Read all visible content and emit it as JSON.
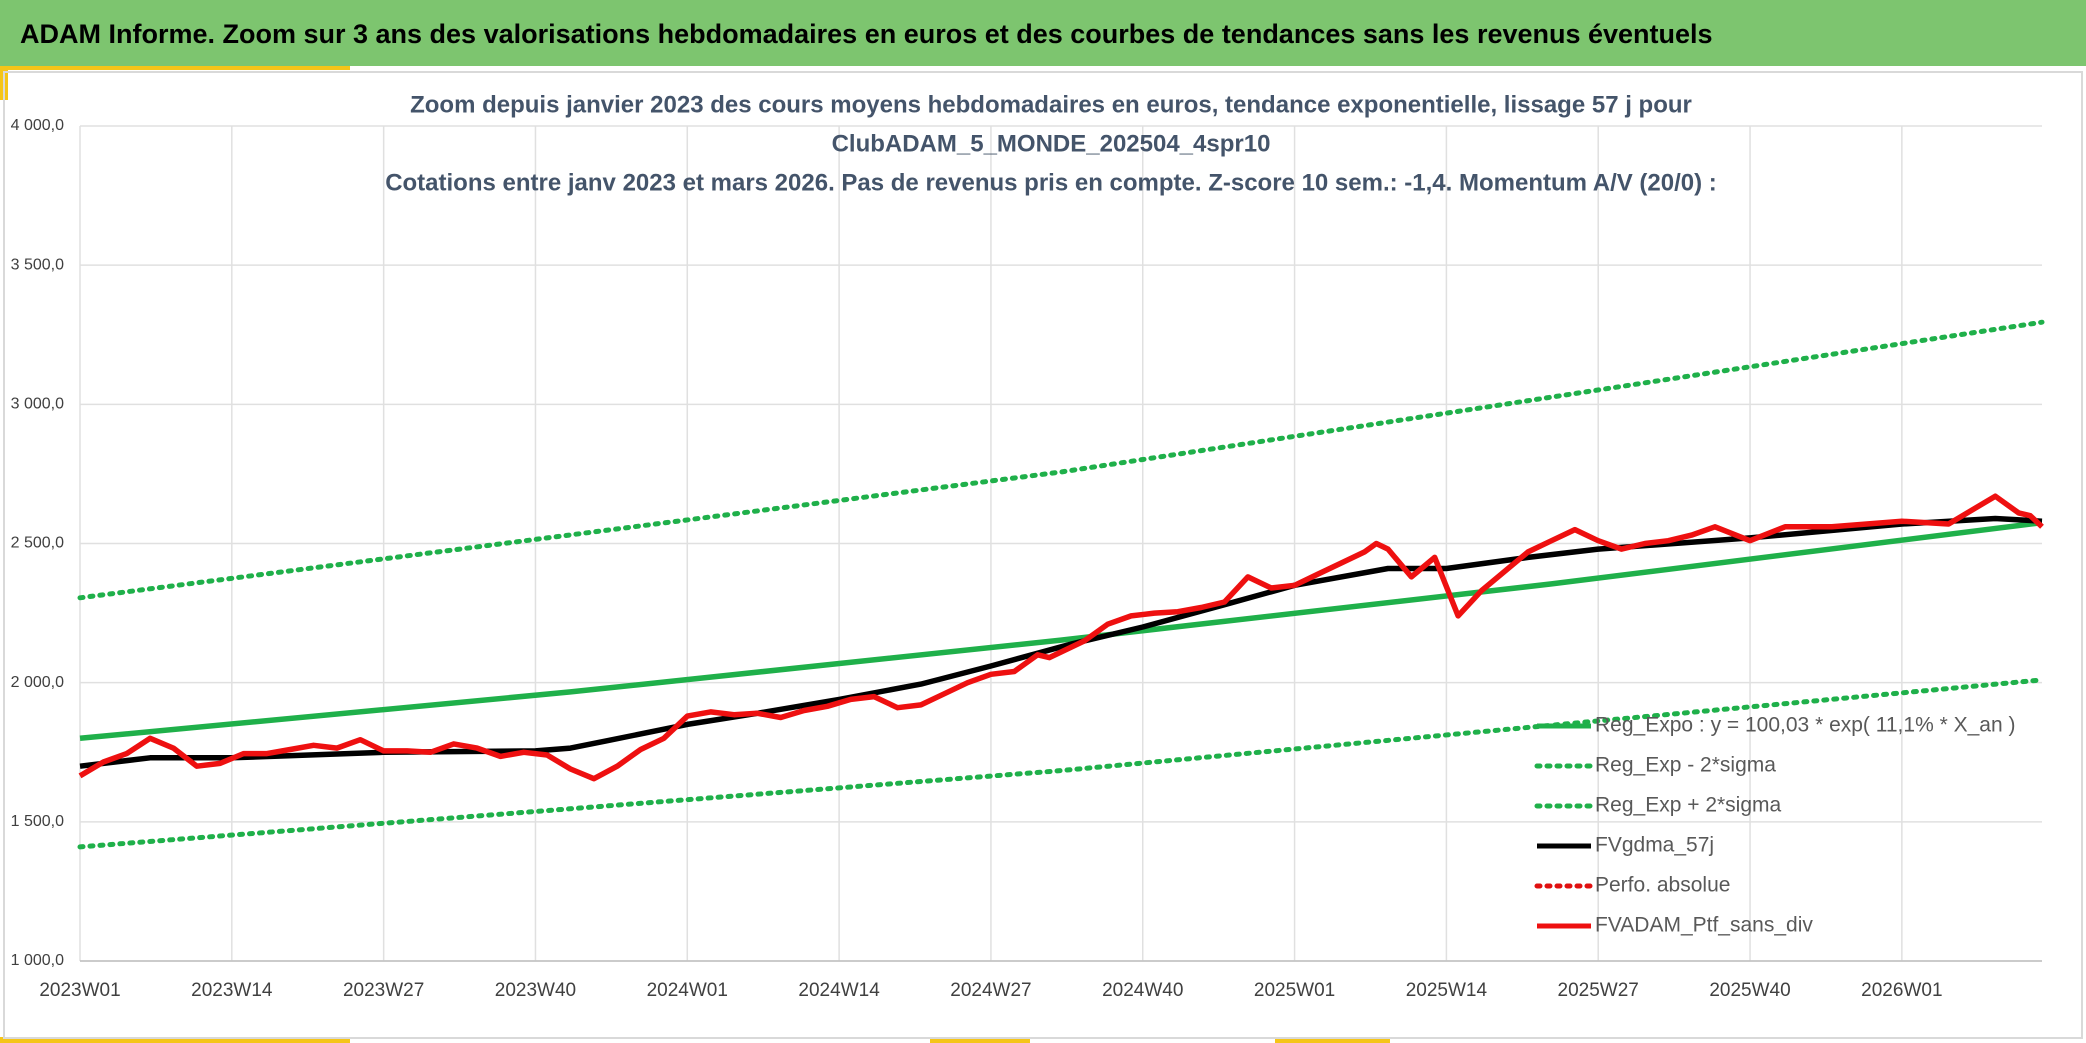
{
  "header": {
    "title": "ADAM Informe. Zoom sur 3 ans des valorisations hebdomadaires en euros et des courbes de tendances sans les revenus éventuels"
  },
  "chart_data": {
    "type": "line",
    "title_lines": [
      "Zoom depuis janvier 2023 des cours moyens hebdomadaires en euros, tendance exponentielle, lissage 57 j pour",
      "ClubADAM_5_MONDE_202504_4spr10",
      "Cotations entre janv 2023 et mars 2026. Pas de revenus pris en compte. Z-score 10 sem.: -1,4. Momentum A/V (20/0) :"
    ],
    "xlim": [
      0,
      168
    ],
    "xticks": [
      {
        "value": 0,
        "label": "2023W01"
      },
      {
        "value": 13,
        "label": "2023W14"
      },
      {
        "value": 26,
        "label": "2023W27"
      },
      {
        "value": 39,
        "label": "2023W40"
      },
      {
        "value": 52,
        "label": "2024W01"
      },
      {
        "value": 65,
        "label": "2024W14"
      },
      {
        "value": 78,
        "label": "2024W27"
      },
      {
        "value": 91,
        "label": "2024W40"
      },
      {
        "value": 104,
        "label": "2025W01"
      },
      {
        "value": 117,
        "label": "2025W14"
      },
      {
        "value": 130,
        "label": "2025W27"
      },
      {
        "value": 143,
        "label": "2025W40"
      },
      {
        "value": 156,
        "label": "2026W01"
      }
    ],
    "ylim": [
      1000,
      4000
    ],
    "yticks": [
      {
        "value": 1000,
        "label": "1 000,0"
      },
      {
        "value": 1500,
        "label": "1 500,0"
      },
      {
        "value": 2000,
        "label": "2 000,0"
      },
      {
        "value": 2500,
        "label": "2 500,0"
      },
      {
        "value": 3000,
        "label": "3 000,0"
      },
      {
        "value": 3500,
        "label": "3 500,0"
      },
      {
        "value": 4000,
        "label": "4 000,0"
      }
    ],
    "grid": true,
    "legend": "bottom-right",
    "series": [
      {
        "name": "Reg_Expo : y = 100,03 * exp( 11,1% *  X_an )",
        "color": "#1fb04a",
        "style": "solid",
        "x": [
          0,
          42,
          84,
          126,
          168
        ],
        "values": [
          1800,
          1967,
          2153,
          2355,
          2575
        ]
      },
      {
        "name": "Reg_Exp - 2*sigma",
        "color": "#1fb04a",
        "style": "dotted",
        "x": [
          0,
          84,
          168
        ],
        "values": [
          1410,
          1684,
          2010
        ]
      },
      {
        "name": "Reg_Exp + 2*sigma",
        "color": "#1fb04a",
        "style": "dotted",
        "x": [
          0,
          84,
          168
        ],
        "values": [
          2305,
          2757,
          3295
        ]
      },
      {
        "name": "FVgdma_57j",
        "color": "#000000",
        "style": "solid",
        "x": [
          0,
          6,
          13,
          26,
          39,
          42,
          45,
          52,
          58,
          65,
          72,
          78,
          85,
          91,
          98,
          104,
          112,
          117,
          124,
          130,
          143,
          156,
          164,
          168
        ],
        "values": [
          1700,
          1730,
          1730,
          1750,
          1755,
          1765,
          1790,
          1850,
          1890,
          1940,
          1995,
          2060,
          2140,
          2200,
          2280,
          2350,
          2410,
          2410,
          2450,
          2480,
          2520,
          2570,
          2590,
          2580
        ]
      },
      {
        "name": "Perfo. absolue",
        "color": "#e01010",
        "style": "dotted",
        "x": [],
        "values": []
      },
      {
        "name": "FVADAM_Ptf_sans_div",
        "color": "#ee1010",
        "style": "solid",
        "x": [
          0,
          2,
          4,
          6,
          8,
          10,
          12,
          14,
          16,
          18,
          20,
          22,
          24,
          26,
          28,
          30,
          32,
          34,
          36,
          38,
          40,
          42,
          44,
          46,
          48,
          50,
          52,
          54,
          56,
          58,
          60,
          62,
          64,
          66,
          68,
          70,
          72,
          74,
          76,
          78,
          80,
          82,
          83,
          86,
          88,
          90,
          92,
          94,
          96,
          98,
          100,
          102,
          104,
          106,
          108,
          110,
          111,
          112,
          114,
          116,
          118,
          120,
          122,
          124,
          126,
          128,
          130,
          132,
          134,
          136,
          138,
          140,
          143,
          146,
          150,
          156,
          160,
          164,
          166,
          167,
          168
        ],
        "values": [
          1665,
          1715,
          1745,
          1800,
          1765,
          1700,
          1710,
          1745,
          1745,
          1760,
          1775,
          1765,
          1795,
          1755,
          1755,
          1750,
          1780,
          1765,
          1735,
          1750,
          1740,
          1690,
          1655,
          1700,
          1760,
          1800,
          1880,
          1895,
          1885,
          1890,
          1875,
          1900,
          1915,
          1940,
          1950,
          1910,
          1920,
          1960,
          2000,
          2030,
          2040,
          2100,
          2090,
          2150,
          2210,
          2240,
          2250,
          2255,
          2270,
          2290,
          2380,
          2340,
          2350,
          2390,
          2430,
          2470,
          2500,
          2480,
          2380,
          2450,
          2240,
          2330,
          2400,
          2470,
          2510,
          2550,
          2510,
          2480,
          2500,
          2510,
          2530,
          2560,
          2510,
          2560,
          2560,
          2580,
          2570,
          2670,
          2610,
          2600,
          2560
        ]
      }
    ]
  }
}
